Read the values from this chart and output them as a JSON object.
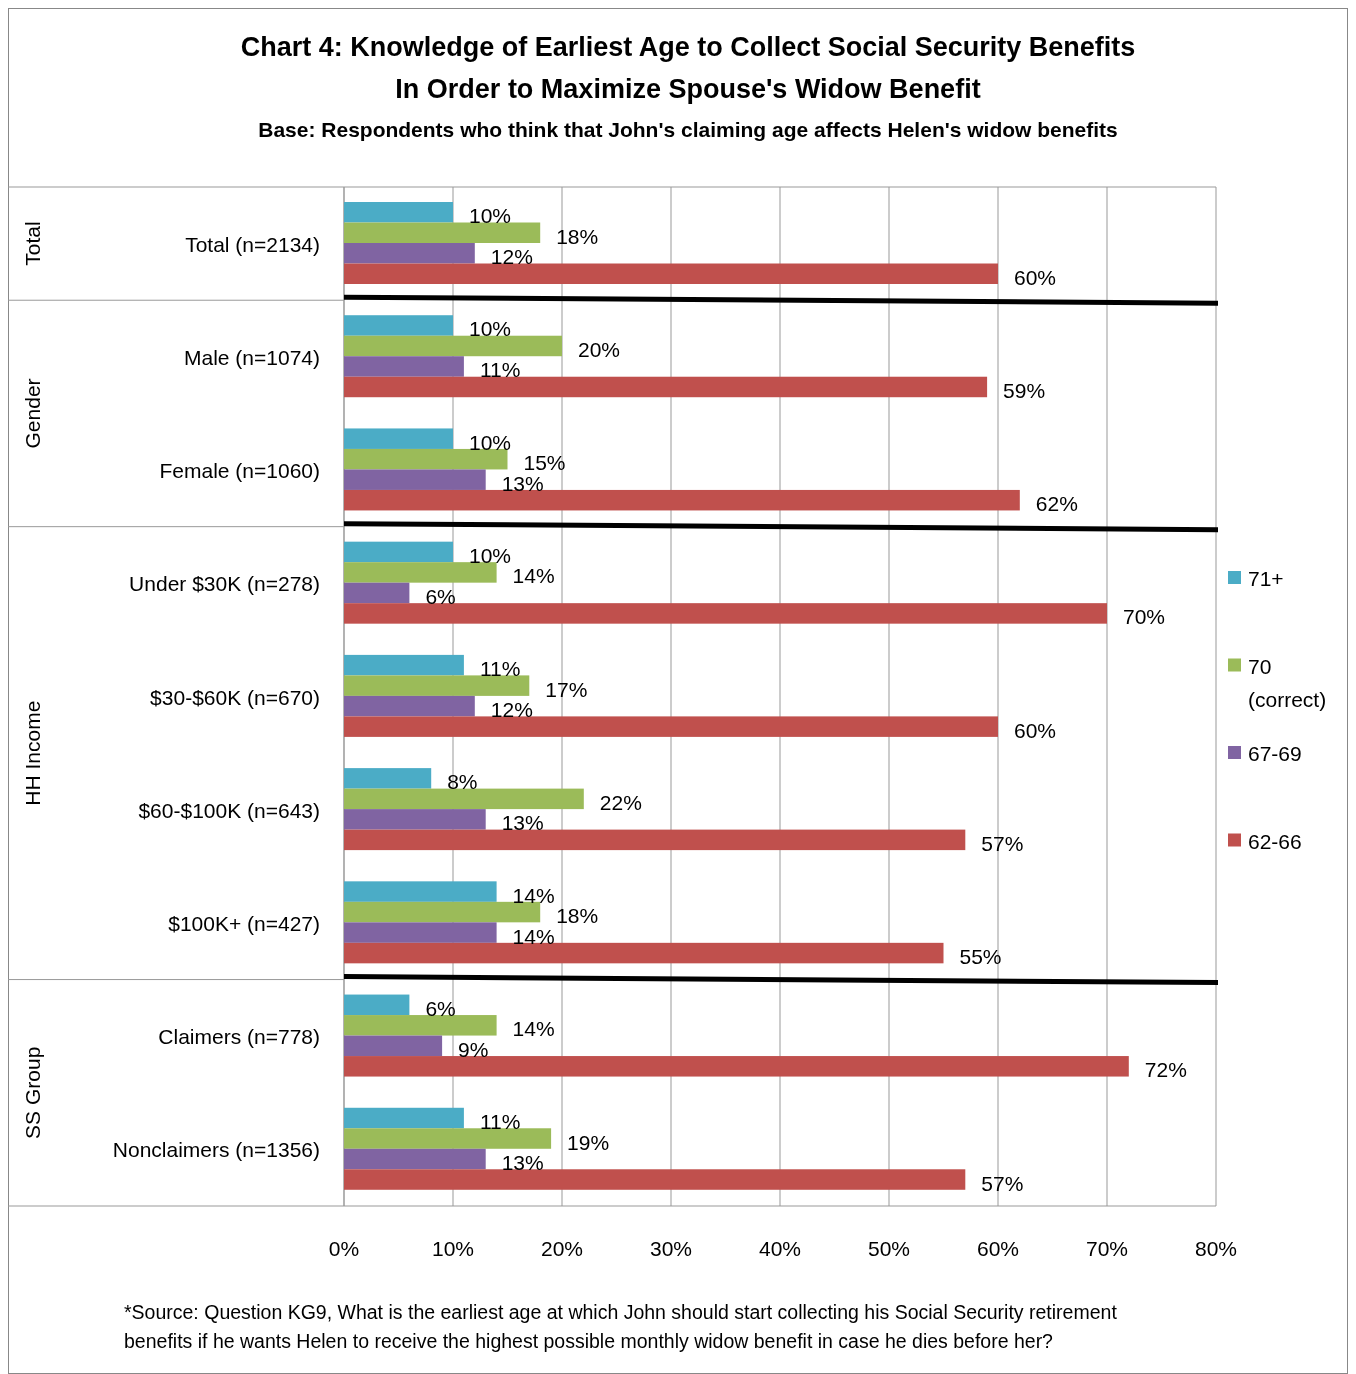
{
  "chart_data": {
    "type": "bar",
    "orientation": "horizontal",
    "title": "Chart 4:  Knowledge of Earliest Age to Collect Social Security Benefits In Order to Maximize Spouse's Widow Benefit",
    "subtitle": "Base: Respondents who think that John's claiming age affects Helen's widow benefits",
    "categories": [
      "Total (n=2134)",
      "Male (n=1074)",
      "Female (n=1060)",
      "Under $30K (n=278)",
      "$30-$60K (n=670)",
      "$60-$100K (n=643)",
      "$100K+ (n=427)",
      "Claimers (n=778)",
      "Nonclaimers (n=1356)"
    ],
    "series": [
      {
        "name": "71+",
        "color": "#4bacc6",
        "values": [
          10,
          10,
          10,
          10,
          11,
          8,
          14,
          6,
          11
        ],
        "value_labels": [
          "10%",
          "10%",
          "10%",
          "10%",
          "11%",
          "8%",
          "14%",
          "6%",
          "11%"
        ]
      },
      {
        "name": "70 (correct)",
        "color": "#9bbb59",
        "values": [
          18,
          20,
          15,
          14,
          17,
          22,
          18,
          14,
          19
        ],
        "value_labels": [
          "18%",
          "20%",
          "15%",
          "14%",
          "17%",
          "22%",
          "18%",
          "14%",
          "19%"
        ]
      },
      {
        "name": "67-69",
        "color": "#8064a2",
        "values": [
          12,
          11,
          13,
          6,
          12,
          13,
          14,
          9,
          13
        ],
        "value_labels": [
          "12%",
          "11%",
          "13%",
          "6%",
          "12%",
          "13%",
          "14%",
          "9%",
          "13%"
        ]
      },
      {
        "name": "62-66",
        "color": "#c0504d",
        "values": [
          60,
          59,
          62,
          70,
          60,
          57,
          55,
          72,
          57
        ],
        "value_labels": [
          "60%",
          "59%",
          "62%",
          "70%",
          "60%",
          "57%",
          "55%",
          "72%",
          "57%"
        ]
      }
    ],
    "xlim": [
      0,
      80
    ],
    "xticks": [
      {
        "value": 0,
        "label": "0%"
      },
      {
        "value": 10,
        "label": "10%"
      },
      {
        "value": 20,
        "label": "20%"
      },
      {
        "value": 30,
        "label": "30%"
      },
      {
        "value": 40,
        "label": "40%"
      },
      {
        "value": 50,
        "label": "50%"
      },
      {
        "value": 60,
        "label": "60%"
      },
      {
        "value": 70,
        "label": "70%"
      },
      {
        "value": 80,
        "label": "80%"
      }
    ],
    "grid": "x",
    "legend": "right",
    "annotations": [
      "Total",
      "Gender",
      "HH Income",
      "SS Group",
      "*Source: Question KG9, What is the earliest age at which John should start collecting his Social Security retirement benefits if he wants Helen to receive the highest possible monthly widow benefit in case he dies before her?"
    ]
  }
}
